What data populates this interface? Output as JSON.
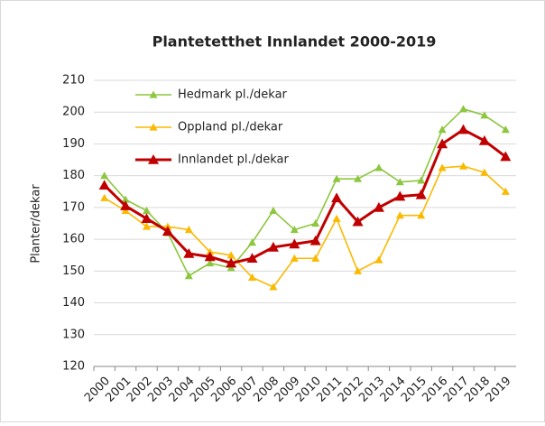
{
  "chart_data": {
    "type": "line",
    "title": "Plantetetthet Innlandet 2000-2019",
    "y_label": "Planter/dekar",
    "categories": [
      "2000",
      "2001",
      "2002",
      "2003",
      "2004",
      "2005",
      "2006",
      "2007",
      "2008",
      "2009",
      "2010",
      "2011",
      "2012",
      "2013",
      "2014",
      "2015",
      "2016",
      "2017",
      "2018",
      "2019"
    ],
    "series": [
      {
        "name": "Hedmark pl./dekar",
        "color": "#8dc63f",
        "values": [
          180,
          172.5,
          169,
          162,
          148.5,
          152.5,
          151,
          159,
          169,
          163,
          165,
          179,
          179,
          182.5,
          178,
          178.5,
          194.5,
          201,
          199,
          194.5
        ]
      },
      {
        "name": "Oppland pl./dekar",
        "color": "#fbb900",
        "values": [
          173,
          169,
          164,
          164,
          163,
          156,
          155,
          148,
          145,
          154,
          154,
          166.5,
          150,
          153.5,
          167.5,
          167.5,
          182.5,
          183,
          181,
          175
        ]
      },
      {
        "name": "Innlandet pl./dekar",
        "color": "#c00000",
        "values": [
          177,
          170.5,
          166.5,
          162.5,
          155.5,
          154.5,
          152.5,
          154,
          157.5,
          158.5,
          159.5,
          173,
          165.5,
          170,
          173.5,
          174,
          190,
          194.5,
          191,
          186
        ]
      }
    ],
    "ylim": [
      120,
      210
    ],
    "yticks": [
      120,
      130,
      140,
      150,
      160,
      170,
      180,
      190,
      200,
      210
    ],
    "grid": true
  }
}
